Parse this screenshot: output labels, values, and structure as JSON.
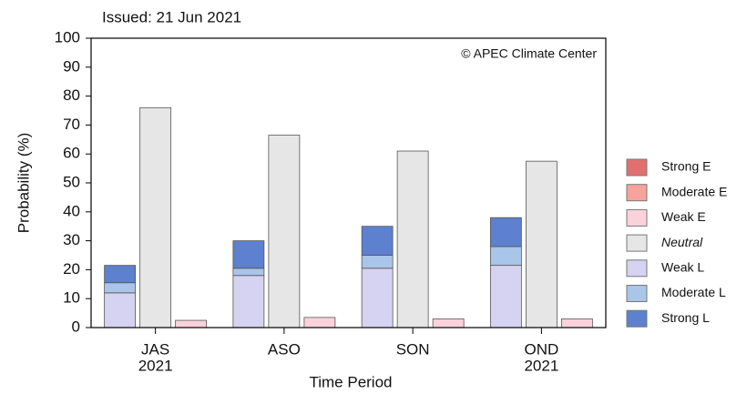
{
  "chart_data": {
    "type": "grouped_stacked_bar",
    "title": "Issued: 21 Jun 2021",
    "annotation": "© APEC Climate Center",
    "x_label": "Time Period",
    "y_label": "Probability (%)",
    "categories": [
      "JAS",
      "ASO",
      "SON",
      "OND"
    ],
    "category_years": [
      "2021",
      null,
      null,
      "2021"
    ],
    "ylim": [
      0,
      100
    ],
    "yticks": [
      0,
      10,
      20,
      30,
      40,
      50,
      60,
      70,
      80,
      90,
      100
    ],
    "series": [
      {
        "name": "Strong E",
        "color": "#e07070",
        "group": 2,
        "values": [
          0,
          0,
          0,
          0
        ]
      },
      {
        "name": "Moderate E",
        "color": "#f5a39c",
        "group": 2,
        "values": [
          0,
          0,
          0,
          0
        ]
      },
      {
        "name": "Weak E",
        "color": "#fbd2dc",
        "group": 2,
        "values": [
          2.5,
          3.5,
          3,
          3
        ]
      },
      {
        "name": "Neutral",
        "color": "#e6e6e6",
        "group": 1,
        "values": [
          76,
          66.5,
          61,
          57.5
        ]
      },
      {
        "name": "Weak L",
        "color": "#d6d2f2",
        "group": 0,
        "values": [
          12,
          18,
          20.5,
          21.5
        ]
      },
      {
        "name": "Moderate L",
        "color": "#a9c5e8",
        "group": 0,
        "values": [
          3.5,
          2.5,
          4.5,
          6.5
        ]
      },
      {
        "name": "Strong L",
        "color": "#5d80cf",
        "group": 0,
        "values": [
          6,
          9.5,
          10,
          10
        ]
      }
    ]
  }
}
